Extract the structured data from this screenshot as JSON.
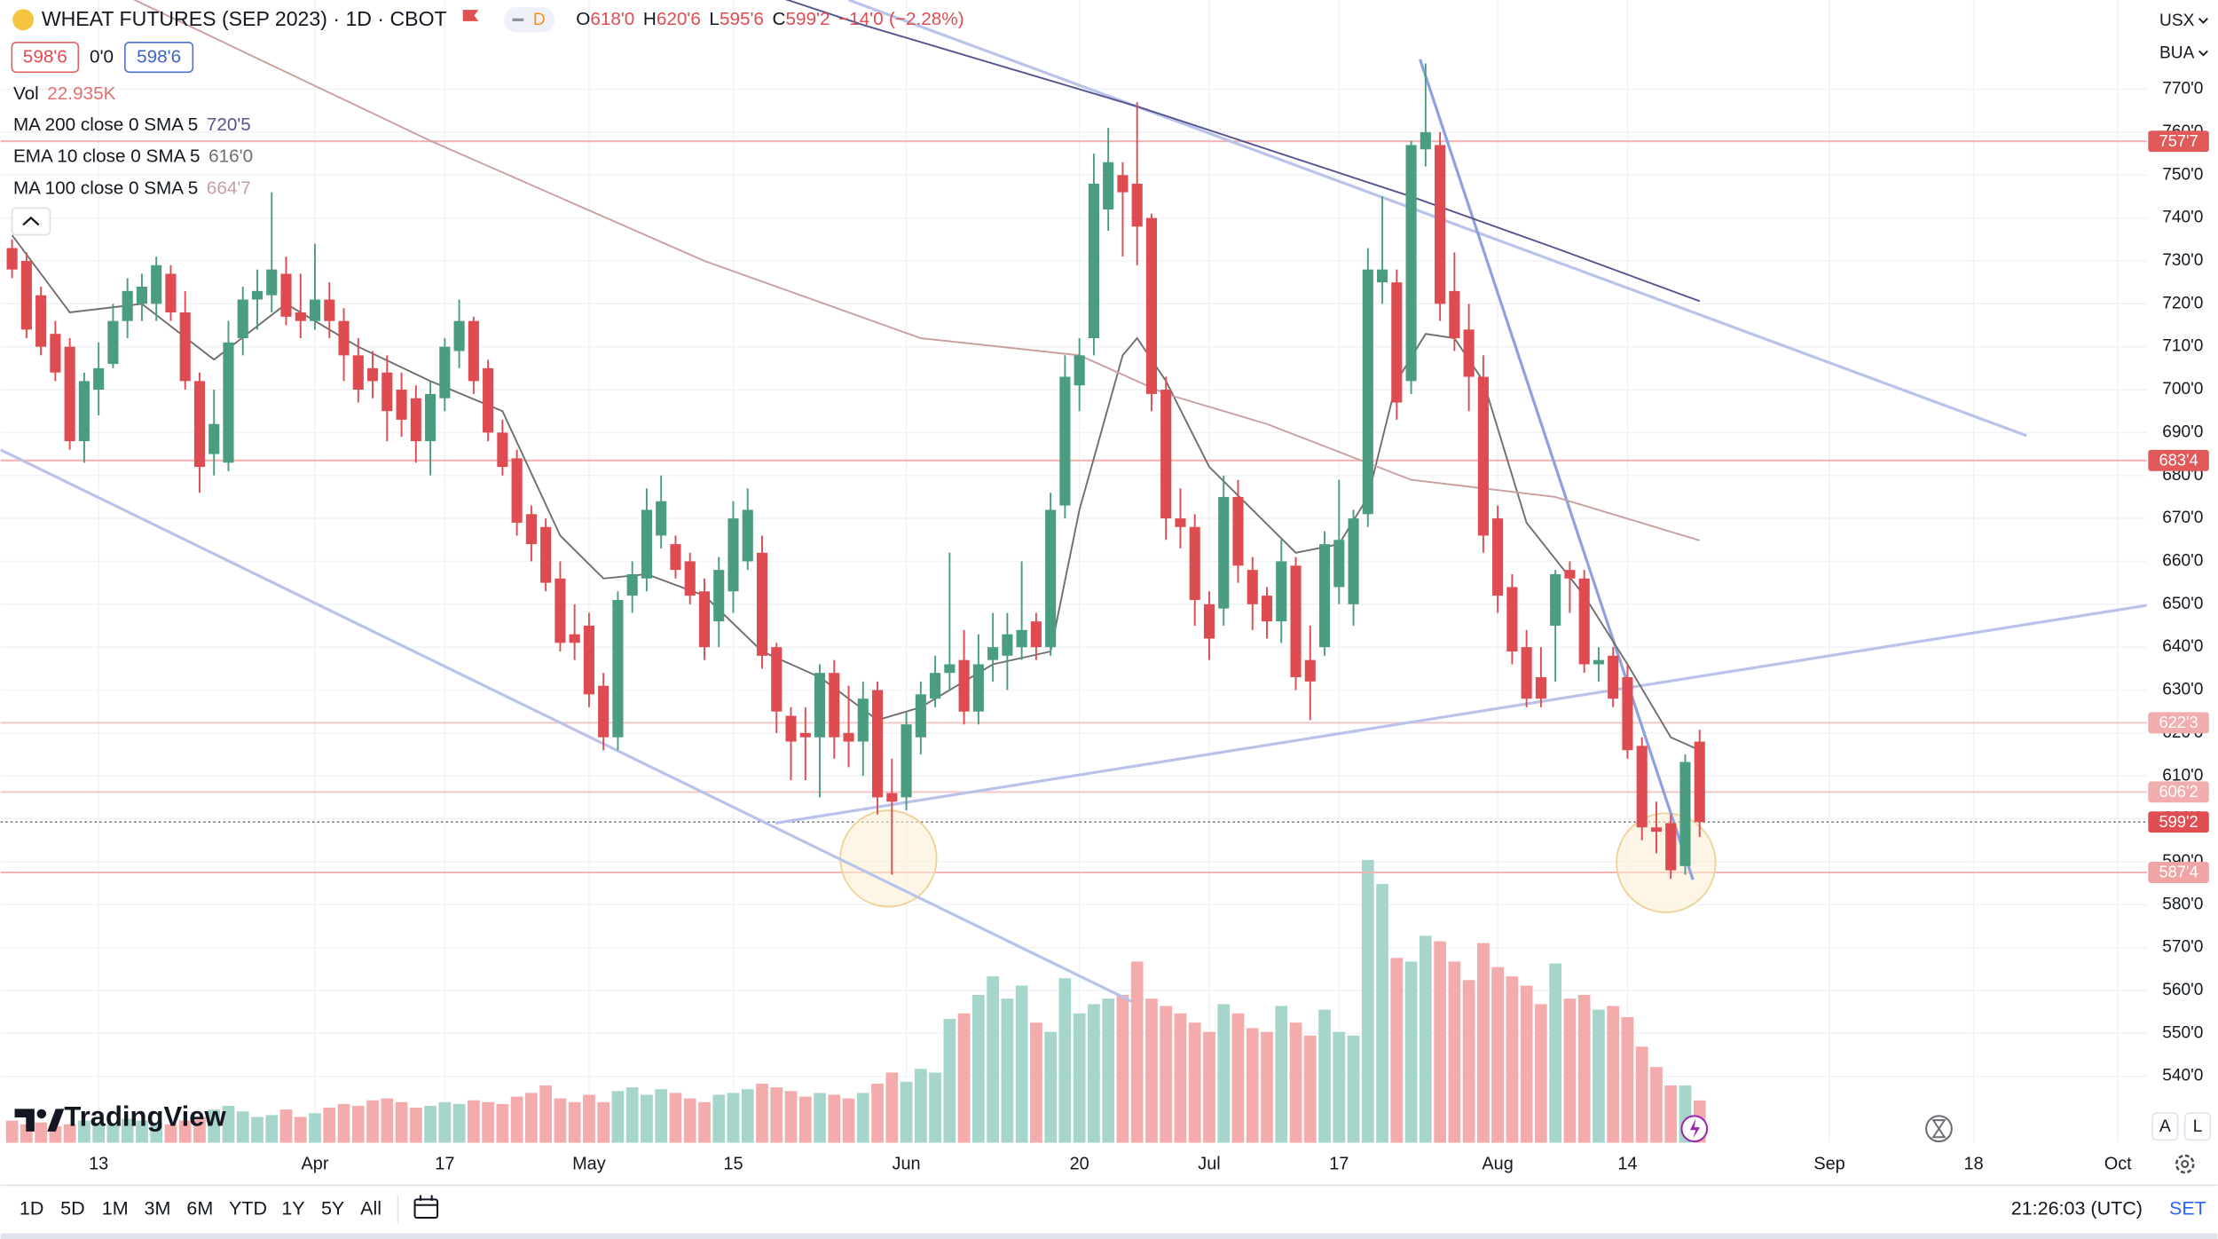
{
  "chart_data": {
    "type": "candlestick",
    "title": "WHEAT FUTURES (SEP 2023) · 1D · CBOT",
    "interval_badge": "D",
    "ohlc_legend": {
      "o": "O",
      "open": "618'0",
      "h": "H",
      "high": "620'6",
      "l": "L",
      "low": "595'6",
      "c": "C",
      "close": "599'2",
      "change": "−14'0",
      "change_pct": "(−2.28%)"
    },
    "quote": {
      "bid": "598'6",
      "spread": "0'0",
      "ask": "598'6"
    },
    "volume_name": "Vol",
    "volume_label": "22.935K",
    "up_color": "#4a9d80",
    "down_color": "#de4c51",
    "volume_up_color": "#a6d6cb",
    "volume_down_color": "#f4abac",
    "xlim": [
      -0.8,
      148
    ],
    "ylim": [
      524.5,
      790.8
    ],
    "y2lim": [
      0,
      618
    ],
    "grid": true,
    "xticks": [
      {
        "value": 6,
        "label": "13"
      },
      {
        "value": 21,
        "label": "Apr"
      },
      {
        "value": 30,
        "label": "17"
      },
      {
        "value": 40,
        "label": "May"
      },
      {
        "value": 50,
        "label": "15"
      },
      {
        "value": 62,
        "label": "Jun"
      },
      {
        "value": 74,
        "label": "20"
      },
      {
        "value": 83,
        "label": "Jul"
      },
      {
        "value": 92,
        "label": "17"
      },
      {
        "value": 103,
        "label": "Aug"
      },
      {
        "value": 112,
        "label": "14"
      },
      {
        "value": 126,
        "label": "Sep"
      },
      {
        "value": 136,
        "label": "18"
      },
      {
        "value": 146,
        "label": "Oct"
      }
    ],
    "yticks": [
      {
        "value": 540,
        "label": "540'0"
      },
      {
        "value": 550,
        "label": "550'0"
      },
      {
        "value": 560,
        "label": "560'0"
      },
      {
        "value": 570,
        "label": "570'0"
      },
      {
        "value": 580,
        "label": "580'0"
      },
      {
        "value": 590,
        "label": "590'0"
      },
      {
        "value": 600,
        "label": "600'0"
      },
      {
        "value": 610,
        "label": "610'0"
      },
      {
        "value": 620,
        "label": "620'0"
      },
      {
        "value": 630,
        "label": "630'0"
      },
      {
        "value": 640,
        "label": "640'0"
      },
      {
        "value": 650,
        "label": "650'0"
      },
      {
        "value": 660,
        "label": "660'0"
      },
      {
        "value": 670,
        "label": "670'0"
      },
      {
        "value": 680,
        "label": "680'0"
      },
      {
        "value": 690,
        "label": "690'0"
      },
      {
        "value": 700,
        "label": "700'0"
      },
      {
        "value": 710,
        "label": "710'0"
      },
      {
        "value": 720,
        "label": "720'0"
      },
      {
        "value": 730,
        "label": "730'0"
      },
      {
        "value": 740,
        "label": "740'0"
      },
      {
        "value": 750,
        "label": "750'0"
      },
      {
        "value": 760,
        "label": "760'0"
      },
      {
        "value": 770,
        "label": "770'0"
      }
    ],
    "open": [
      733,
      730,
      722,
      713,
      710,
      688,
      700,
      706,
      716,
      720,
      720,
      727,
      718,
      702,
      685,
      683,
      712,
      721,
      722,
      727,
      718,
      716,
      721,
      716,
      708,
      705,
      704,
      700,
      698,
      688,
      698,
      709,
      716,
      705,
      690,
      684,
      671,
      668,
      656,
      643,
      645,
      631,
      619,
      652,
      656,
      666,
      664,
      660,
      653,
      646,
      653,
      660,
      662,
      640,
      624,
      620,
      619,
      634,
      620,
      618,
      630,
      606,
      605,
      619,
      628,
      634,
      637,
      625,
      637,
      638,
      640,
      646,
      640,
      673,
      701,
      712,
      742,
      750,
      748,
      740,
      700,
      670,
      668,
      650,
      649,
      675,
      658,
      652,
      646,
      659,
      637,
      640,
      654,
      650,
      671,
      725,
      725,
      702,
      756,
      757,
      723,
      714,
      703,
      670,
      654,
      640,
      633,
      645,
      658,
      656,
      636,
      638,
      633,
      617,
      598,
      599,
      589,
      618
    ],
    "high": [
      735,
      732,
      724,
      716,
      712,
      704,
      711,
      720,
      726,
      727,
      731,
      729,
      723,
      704,
      700,
      716,
      724,
      728,
      746,
      731,
      727,
      734,
      725,
      719,
      712,
      709,
      708,
      704,
      701,
      702,
      712,
      721,
      717,
      707,
      693,
      686,
      673,
      670,
      660,
      650,
      648,
      634,
      653,
      660,
      677,
      680,
      666,
      662,
      656,
      661,
      674,
      677,
      666,
      641,
      626,
      626,
      636,
      637,
      631,
      632,
      632,
      614,
      625,
      632,
      638,
      662,
      644,
      643,
      648,
      648,
      660,
      648,
      676,
      708,
      712,
      755,
      761,
      753,
      767,
      741,
      703,
      677,
      671,
      653,
      680,
      679,
      661,
      654,
      665,
      661,
      645,
      667,
      679,
      672,
      733,
      745,
      728,
      758,
      776,
      760,
      732,
      720,
      708,
      673,
      657,
      644,
      640,
      658,
      660,
      658,
      640,
      640,
      636,
      619,
      604,
      601,
      615,
      620.75
    ],
    "low": [
      726,
      712,
      708,
      702,
      686,
      683,
      694,
      705,
      712,
      716,
      716,
      716,
      700,
      676,
      680,
      681,
      708,
      714,
      718,
      715,
      712,
      714,
      712,
      702,
      697,
      698,
      688,
      689,
      683,
      680,
      695,
      705,
      699,
      688,
      680,
      666,
      660,
      653,
      639,
      637,
      626,
      616,
      616,
      648,
      653,
      663,
      656,
      650,
      637,
      640,
      648,
      658,
      635,
      620,
      609,
      609,
      605,
      614,
      612,
      610,
      601,
      587,
      602,
      615,
      626,
      630,
      622,
      622,
      632,
      630,
      637,
      637,
      638,
      670,
      695,
      708,
      737,
      731,
      729,
      695,
      665,
      663,
      645,
      637,
      645,
      655,
      644,
      642,
      641,
      630,
      623,
      638,
      650,
      645,
      668,
      720,
      693,
      699,
      752,
      716,
      709,
      695,
      662,
      648,
      636,
      626,
      626,
      632,
      648,
      634,
      632,
      626,
      614,
      595,
      592,
      586,
      587,
      595.75
    ],
    "close": [
      728,
      714,
      710,
      704,
      688,
      702,
      705,
      716,
      723,
      724,
      729,
      718,
      702,
      682,
      692,
      711,
      721,
      723,
      728,
      717,
      716,
      721,
      716,
      708,
      700,
      702,
      695,
      693,
      688,
      699,
      710,
      716,
      702,
      690,
      682,
      669,
      664,
      655,
      641,
      641,
      629,
      619,
      651,
      657,
      672,
      674,
      658,
      652,
      640,
      658,
      670,
      672,
      638,
      625,
      618,
      619,
      634,
      619,
      618,
      628,
      605,
      604,
      622,
      629,
      634,
      636,
      625,
      636,
      640,
      643,
      644,
      640,
      672,
      703,
      708,
      748,
      753,
      746,
      738,
      699,
      670,
      668,
      651,
      642,
      675,
      659,
      650,
      646,
      660,
      633,
      632,
      664,
      665,
      670,
      728,
      728,
      697,
      757,
      760,
      720,
      712,
      703,
      666,
      652,
      639,
      628,
      628,
      657,
      656,
      636,
      637,
      628,
      616,
      598,
      597,
      588,
      613.25,
      599.25
    ],
    "volume": [
      12,
      10,
      11,
      9,
      10,
      12,
      11,
      10,
      13,
      12,
      11,
      10,
      12,
      14,
      18,
      20,
      17,
      14,
      15,
      18,
      14,
      16,
      19,
      21,
      20,
      23,
      24,
      22,
      19,
      20,
      22,
      21,
      23,
      22,
      21,
      25,
      27,
      31,
      24,
      22,
      26,
      22,
      28,
      30,
      26,
      29,
      27,
      24,
      22,
      26,
      27,
      29,
      32,
      30,
      28,
      25,
      27,
      26,
      24,
      27,
      32,
      38,
      33,
      40,
      38,
      67,
      70,
      80,
      90,
      78,
      85,
      65,
      60,
      89,
      70,
      75,
      78,
      80,
      98,
      78,
      74,
      70,
      65,
      60,
      75,
      70,
      62,
      60,
      74,
      65,
      58,
      72,
      60,
      58,
      153,
      140,
      100,
      98,
      112,
      109,
      98,
      88,
      108,
      95,
      90,
      85,
      75,
      97,
      78,
      80,
      72,
      74,
      68,
      52,
      41,
      31,
      31,
      22.935
    ],
    "last_price": {
      "label": "599'2",
      "color": "#e04e52"
    },
    "indicators": [
      {
        "name": "MA 200 close 0 SMA 5",
        "color": "#55558f",
        "last_label": "720'5",
        "x": [
          50,
          59,
          78,
          97,
          107,
          117
        ],
        "values": [
          795,
          785,
          766,
          745,
          733,
          720.625
        ]
      },
      {
        "name": "EMA 10 close 0 SMA 5",
        "color": "#6f6f6f",
        "last_label": "616'0",
        "x": [
          0,
          4,
          9,
          14,
          19,
          24,
          29,
          34,
          38,
          41,
          44,
          48,
          52,
          56,
          60,
          63,
          68,
          72,
          74,
          77,
          78,
          80,
          83,
          86,
          89,
          92,
          94,
          96,
          98,
          100,
          102,
          105,
          109,
          112,
          115,
          117
        ],
        "values": [
          736,
          718,
          720,
          707,
          720,
          710,
          702,
          695,
          666,
          656,
          657,
          652,
          639,
          633,
          623,
          626,
          636,
          639,
          672,
          708,
          712,
          702,
          682,
          672,
          662,
          664,
          675,
          702,
          713,
          712,
          702,
          669,
          652,
          636,
          619,
          616
        ]
      },
      {
        "name": "MA 100 close 0 SMA 5",
        "color": "#c9a0a0",
        "last_label": "664'7",
        "x": [
          0,
          9,
          29,
          48,
          63,
          74,
          80,
          87,
          97,
          107,
          117
        ],
        "values": [
          805,
          790,
          758,
          730,
          712,
          708,
          699,
          692,
          679,
          675,
          664.875
        ]
      }
    ],
    "levels": [
      {
        "value": 757.875,
        "label": "757'7",
        "color": "#f2b3b3",
        "label_color": "#e05a5a"
      },
      {
        "value": 683.5,
        "label": "683'4",
        "color": "#f2b3b3",
        "label_color": "#e05a5a"
      },
      {
        "value": 622.375,
        "label": "622'3",
        "color": "#f5c6c6",
        "label_color": "#f2aeae"
      },
      {
        "value": 606.25,
        "label": "606'2",
        "color": "#f5c6c6",
        "label_color": "#f2aeae"
      },
      {
        "value": 587.5,
        "label": "587'4",
        "color": "#f2b3b3",
        "label_color": "#f0a4a4"
      }
    ]
  },
  "toolbar": {
    "timeframes": [
      "1D",
      "5D",
      "1M",
      "3M",
      "6M",
      "YTD",
      "1Y",
      "5Y",
      "All"
    ],
    "clock": "21:26:03 (UTC)",
    "session": "SET",
    "symbol_menu": [
      "USX",
      "BUA"
    ],
    "scale_buttons": [
      "A",
      "L"
    ],
    "logo": "TradingView"
  }
}
